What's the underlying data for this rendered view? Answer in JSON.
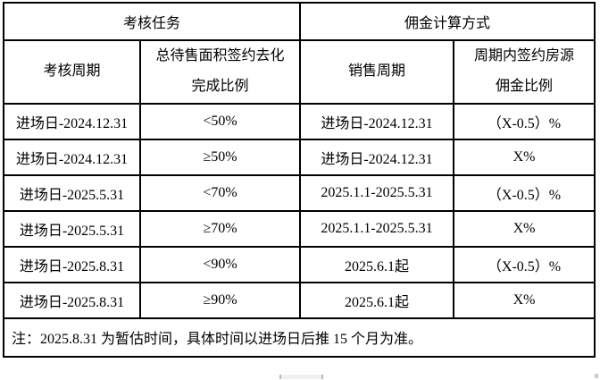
{
  "table": {
    "group_headers": [
      "考核任务",
      "佣金计算方式"
    ],
    "column_headers": [
      "考核周期",
      "总待售面积签约去化\n完成比例",
      "销售周期",
      "周期内签约房源\n佣金比例"
    ],
    "rows": [
      [
        "进场日-2024.12.31",
        "<50%",
        "进场日-2024.12.31",
        "（X-0.5）%"
      ],
      [
        "进场日-2024.12.31",
        "≥50%",
        "进场日-2024.12.31",
        "X%"
      ],
      [
        "进场日-2025.5.31",
        "<70%",
        "2025.1.1-2025.5.31",
        "（X-0.5）%"
      ],
      [
        "进场日-2025.5.31",
        "≥70%",
        "2025.1.1-2025.5.31",
        "X%"
      ],
      [
        "进场日-2025.8.31",
        "<90%",
        "2025.6.1起",
        "（X-0.5）%"
      ],
      [
        "进场日-2025.8.31",
        "≥90%",
        "2025.6.1起",
        "X%"
      ]
    ],
    "footnote": "注：2025.8.31 为暂估时间，具体时间以进场日后推 15 个月为准。"
  },
  "colors": {
    "border": "#000000",
    "background": "#ffffff",
    "text": "#000000",
    "handle": "#f0f0f0"
  }
}
